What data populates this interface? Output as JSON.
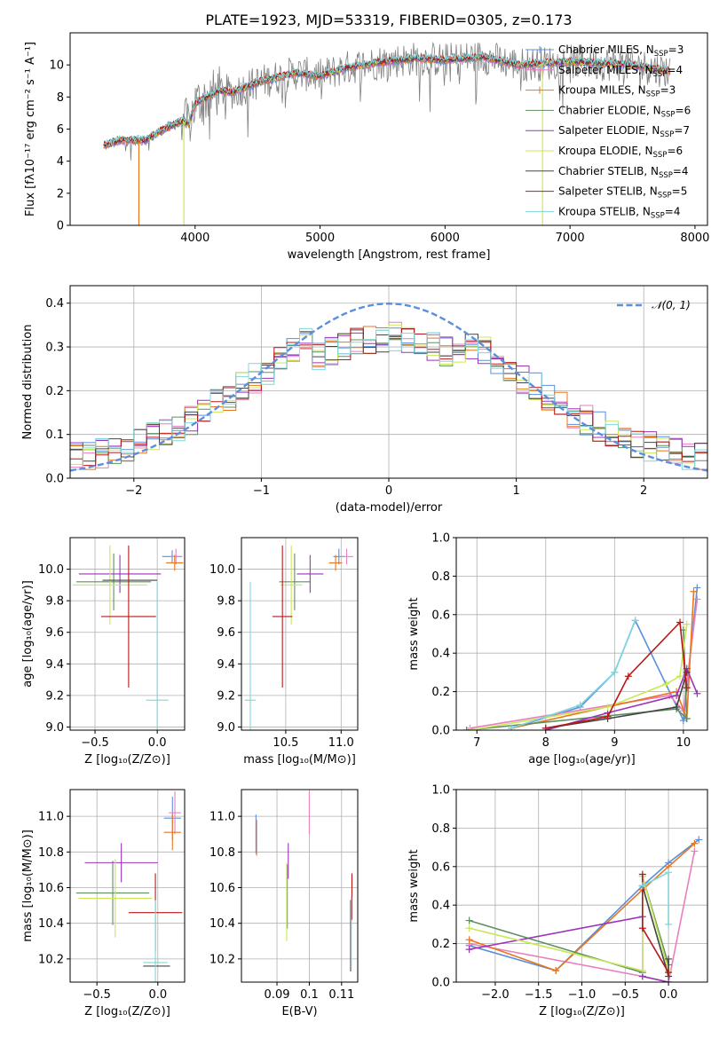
{
  "figure_title": "PLATE=1923, MJD=53319, FIBERID=0305, z=0.173",
  "colors": {
    "Chabrier MILES": "#5b8fdc",
    "Salpeter MILES": "#e97fbd",
    "Kroupa MILES": "#e8761d",
    "Chabrier ELODIE": "#5f8f5f",
    "Salpeter ELODIE": "#9b34b8",
    "Kroupa ELODIE": "#c8e85a",
    "Chabrier STELIB": "#444444",
    "Salpeter STELIB": "#b81818",
    "Kroupa STELIB": "#7fd6dc",
    "data": "#808080",
    "normal": "#5b8fdc"
  },
  "chart_data": [
    {
      "id": "spectrum",
      "type": "line",
      "xlabel": "wavelength [Angstrom, rest frame]",
      "ylabel": "Flux [fλ10⁻¹⁷ erg cm⁻² s⁻¹ A⁻¹]",
      "xlim": [
        3000,
        8100
      ],
      "ylim": [
        0,
        12
      ],
      "xticks": [
        4000,
        5000,
        6000,
        7000,
        8000
      ],
      "yticks": [
        0,
        2,
        4,
        6,
        8,
        10
      ],
      "legend_position": "top-right",
      "legend": [
        {
          "model": "Chabrier MILES",
          "label": "Chabrier MILES, N",
          "sub": "SSP",
          "suffix": "=3"
        },
        {
          "model": "Salpeter MILES",
          "label": "Salpeter MILES, N",
          "sub": "SSP",
          "suffix": "=4"
        },
        {
          "model": "Kroupa MILES",
          "label": "Kroupa MILES, N",
          "sub": "SSP",
          "suffix": "=3"
        },
        {
          "model": "Chabrier ELODIE",
          "label": "Chabrier ELODIE, N",
          "sub": "SSP",
          "suffix": "=6"
        },
        {
          "model": "Salpeter ELODIE",
          "label": "Salpeter ELODIE, N",
          "sub": "SSP",
          "suffix": "=7"
        },
        {
          "model": "Kroupa ELODIE",
          "label": "Kroupa ELODIE, N",
          "sub": "SSP",
          "suffix": "=6"
        },
        {
          "model": "Chabrier STELIB",
          "label": "Chabrier STELIB, N",
          "sub": "SSP",
          "suffix": "=4"
        },
        {
          "model": "Salpeter STELIB",
          "label": "Salpeter STELIB, N",
          "sub": "SSP",
          "suffix": "=5"
        },
        {
          "model": "Kroupa STELIB",
          "label": "Kroupa STELIB, N",
          "sub": "SSP",
          "suffix": "=4"
        }
      ],
      "continuum": [
        [
          3270,
          5.0
        ],
        [
          3400,
          5.3
        ],
        [
          3600,
          5.3
        ],
        [
          3750,
          6.0
        ],
        [
          3900,
          6.5
        ],
        [
          3950,
          6.3
        ],
        [
          4000,
          7.6
        ],
        [
          4200,
          8.4
        ],
        [
          4300,
          8.3
        ],
        [
          4500,
          8.9
        ],
        [
          4800,
          9.5
        ],
        [
          5000,
          9.3
        ],
        [
          5200,
          9.8
        ],
        [
          5500,
          10.2
        ],
        [
          5800,
          10.4
        ],
        [
          6000,
          10.3
        ],
        [
          6300,
          10.5
        ],
        [
          6600,
          10.0
        ],
        [
          7000,
          10.2
        ],
        [
          7500,
          10.0
        ],
        [
          7800,
          9.6
        ]
      ],
      "dropouts": [
        {
          "model": "Kroupa MILES",
          "x": 3550
        },
        {
          "model": "Kroupa ELODIE",
          "x": 3910
        },
        {
          "model": "Kroupa ELODIE",
          "x": 6780
        }
      ]
    },
    {
      "id": "residuals",
      "type": "step",
      "xlabel": "(data-model)/error",
      "ylabel": "Normed distribution",
      "xlim": [
        -2.5,
        2.5
      ],
      "ylim": [
        0,
        0.44
      ],
      "xticks": [
        -2,
        -1,
        0,
        1,
        2
      ],
      "yticks": [
        0.0,
        0.1,
        0.2,
        0.3,
        0.4
      ],
      "bin_width": 0.1,
      "legend_position": "top-right",
      "legend": [
        {
          "label": "𝒩(0, 1)"
        }
      ],
      "curve": {
        "mean": 0,
        "sigma": 1
      }
    },
    {
      "id": "age_vs_Z",
      "type": "errorbar",
      "xlabel": "Z [log₁₀(Z/Z⊙)]",
      "ylabel": "age  [log₁₀(age/yr)]",
      "xlim": [
        -0.7,
        0.22
      ],
      "ylim": [
        8.98,
        10.2
      ],
      "xticks": [
        -0.5,
        0.0
      ],
      "yticks": [
        9.0,
        9.2,
        9.4,
        9.6,
        9.8,
        10.0
      ],
      "points": [
        {
          "model": "Chabrier MILES",
          "x": 0.12,
          "y": 10.08,
          "xerr": 0.08,
          "yerr": 0.04
        },
        {
          "model": "Salpeter MILES",
          "x": 0.15,
          "y": 10.08,
          "xerr": 0.05,
          "yerr": 0.05
        },
        {
          "model": "Kroupa MILES",
          "x": 0.14,
          "y": 10.04,
          "xerr": 0.07,
          "yerr": 0.05
        },
        {
          "model": "Chabrier ELODIE",
          "x": -0.35,
          "y": 9.92,
          "xerr": 0.3,
          "yerr": 0.18
        },
        {
          "model": "Salpeter ELODIE",
          "x": -0.3,
          "y": 9.97,
          "xerr": 0.33,
          "yerr": 0.12
        },
        {
          "model": "Kroupa ELODIE",
          "x": -0.38,
          "y": 9.9,
          "xerr": 0.3,
          "yerr": 0.25
        },
        {
          "model": "Chabrier STELIB",
          "x": -0.22,
          "y": 9.93,
          "xerr": 0.22,
          "yerr": 0.0
        },
        {
          "model": "Salpeter STELIB",
          "x": -0.23,
          "y": 9.7,
          "xerr": 0.22,
          "yerr": 0.45
        },
        {
          "model": "Kroupa STELIB",
          "x": 0.0,
          "y": 9.17,
          "xerr": 0.09,
          "yerr": 0.75
        }
      ]
    },
    {
      "id": "age_vs_mass",
      "type": "errorbar",
      "xlabel": "mass [log₁₀(M/M⊙)]",
      "ylabel": "",
      "xlim": [
        10.1,
        11.15
      ],
      "ylim": [
        8.98,
        10.2
      ],
      "xticks": [
        10.5,
        11.0
      ],
      "yticks": [
        9.0,
        9.2,
        9.4,
        9.6,
        9.8,
        10.0
      ],
      "points": [
        {
          "model": "Chabrier MILES",
          "x": 10.98,
          "y": 10.08,
          "xerr": 0.05,
          "yerr": 0.05
        },
        {
          "model": "Salpeter MILES",
          "x": 11.05,
          "y": 10.08,
          "xerr": 0.06,
          "yerr": 0.05
        },
        {
          "model": "Kroupa MILES",
          "x": 10.95,
          "y": 10.04,
          "xerr": 0.06,
          "yerr": 0.05
        },
        {
          "model": "Chabrier ELODIE",
          "x": 10.58,
          "y": 9.92,
          "xerr": 0.14,
          "yerr": 0.18
        },
        {
          "model": "Salpeter ELODIE",
          "x": 10.72,
          "y": 9.97,
          "xerr": 0.12,
          "yerr": 0.12
        },
        {
          "model": "Kroupa ELODIE",
          "x": 10.55,
          "y": 9.9,
          "xerr": 0.1,
          "yerr": 0.25
        },
        {
          "model": "Chabrier STELIB",
          "x": 10.38,
          "y": 9.93,
          "xerr": 0.0,
          "yerr": 0.0
        },
        {
          "model": "Salpeter STELIB",
          "x": 10.47,
          "y": 9.7,
          "xerr": 0.09,
          "yerr": 0.45
        },
        {
          "model": "Kroupa STELIB",
          "x": 10.18,
          "y": 9.17,
          "xerr": 0.05,
          "yerr": 0.75
        }
      ]
    },
    {
      "id": "massweight_vs_age",
      "type": "line",
      "xlabel": "age  [log₁₀(age/yr)]",
      "ylabel": "mass weight",
      "xlim": [
        6.7,
        10.35
      ],
      "ylim": [
        0,
        1
      ],
      "xticks": [
        7,
        8,
        9,
        10
      ],
      "yticks": [
        0.0,
        0.2,
        0.4,
        0.6,
        0.8,
        1.0
      ],
      "series": [
        {
          "model": "Chabrier MILES",
          "x": [
            7.5,
            8.5,
            9.0,
            9.3,
            10.0,
            10.2
          ],
          "y": [
            0.01,
            0.12,
            0.3,
            0.57,
            0.05,
            0.74
          ]
        },
        {
          "model": "Salpeter MILES",
          "x": [
            6.9,
            9.8,
            10.0,
            10.2
          ],
          "y": [
            0.01,
            0.18,
            0.1,
            0.68
          ]
        },
        {
          "model": "Kroupa MILES",
          "x": [
            7.5,
            9.9,
            10.05,
            10.15
          ],
          "y": [
            0.01,
            0.2,
            0.06,
            0.72
          ]
        },
        {
          "model": "Chabrier ELODIE",
          "x": [
            6.85,
            9.9,
            10.05,
            10.0
          ],
          "y": [
            0.0,
            0.11,
            0.06,
            0.52
          ]
        },
        {
          "model": "Salpeter ELODIE",
          "x": [
            8.0,
            8.9,
            9.9,
            10.05,
            10.2
          ],
          "y": [
            0.0,
            0.09,
            0.18,
            0.32,
            0.19
          ]
        },
        {
          "model": "Kroupa ELODIE",
          "x": [
            6.9,
            8.9,
            9.75,
            9.95,
            10.05
          ],
          "y": [
            0.0,
            0.12,
            0.24,
            0.28,
            0.55
          ]
        },
        {
          "model": "Chabrier STELIB",
          "x": [
            8.0,
            8.9,
            9.9,
            10.05
          ],
          "y": [
            0.01,
            0.06,
            0.12,
            0.3
          ]
        },
        {
          "model": "Salpeter STELIB",
          "x": [
            8.0,
            8.9,
            9.2,
            9.95,
            10.05
          ],
          "y": [
            0.01,
            0.07,
            0.28,
            0.56,
            0.22
          ]
        },
        {
          "model": "Kroupa STELIB",
          "x": [
            7.5,
            8.5,
            9.0,
            9.3
          ],
          "y": [
            0.01,
            0.13,
            0.3,
            0.57
          ]
        }
      ]
    },
    {
      "id": "mass_vs_Z",
      "type": "errorbar",
      "xlabel": "Z [log₁₀(Z/Z⊙)]",
      "ylabel": "mass [log₁₀(M/M⊙)]",
      "xlim": [
        -0.72,
        0.22
      ],
      "ylim": [
        10.07,
        11.15
      ],
      "xticks": [
        -0.5,
        0.0
      ],
      "yticks": [
        10.2,
        10.4,
        10.6,
        10.8,
        11.0
      ],
      "points": [
        {
          "model": "Chabrier MILES",
          "x": 0.12,
          "y": 10.99,
          "xerr": 0.07,
          "yerr": 0.12
        },
        {
          "model": "Salpeter MILES",
          "x": 0.14,
          "y": 11.02,
          "xerr": 0.05,
          "yerr": 0.12
        },
        {
          "model": "Kroupa MILES",
          "x": 0.12,
          "y": 10.91,
          "xerr": 0.07,
          "yerr": 0.1
        },
        {
          "model": "Chabrier ELODIE",
          "x": -0.37,
          "y": 10.57,
          "xerr": 0.3,
          "yerr": 0.18
        },
        {
          "model": "Salpeter ELODIE",
          "x": -0.3,
          "y": 10.74,
          "xerr": 0.3,
          "yerr": 0.11
        },
        {
          "model": "Kroupa ELODIE",
          "x": -0.35,
          "y": 10.54,
          "xerr": 0.3,
          "yerr": 0.22
        },
        {
          "model": "Chabrier STELIB",
          "x": -0.01,
          "y": 10.16,
          "xerr": 0.11,
          "yerr": 0.0
        },
        {
          "model": "Salpeter STELIB",
          "x": -0.02,
          "y": 10.46,
          "xerr": 0.22,
          "yerr": 0.22
        },
        {
          "model": "Kroupa STELIB",
          "x": -0.02,
          "y": 10.18,
          "xerr": 0.1,
          "yerr": 0.35
        }
      ]
    },
    {
      "id": "mass_vs_EBV",
      "type": "errorbar",
      "xlabel": "E(B-V)",
      "ylabel": "",
      "xlim": [
        0.079,
        0.115
      ],
      "ylim": [
        10.07,
        11.15
      ],
      "xticks": [
        0.09,
        0.1,
        0.11
      ],
      "yticks": [
        10.2,
        10.4,
        10.6,
        10.8,
        11.0
      ],
      "points": [
        {
          "model": "Chabrier MILES",
          "x": 0.0835,
          "y": 10.9,
          "xerr": 0.0,
          "yerr": 0.11
        },
        {
          "model": "Salpeter MILES",
          "x": 0.1,
          "y": 11.02,
          "xerr": 0.0,
          "yerr": 0.12
        },
        {
          "model": "Kroupa MILES",
          "x": 0.0837,
          "y": 10.88,
          "xerr": 0.0,
          "yerr": 0.1
        },
        {
          "model": "Chabrier ELODIE",
          "x": 0.0932,
          "y": 10.55,
          "xerr": 0.0,
          "yerr": 0.18
        },
        {
          "model": "Salpeter ELODIE",
          "x": 0.0935,
          "y": 10.75,
          "xerr": 0.0,
          "yerr": 0.1
        },
        {
          "model": "Kroupa ELODIE",
          "x": 0.093,
          "y": 10.52,
          "xerr": 0.0,
          "yerr": 0.22
        },
        {
          "model": "Chabrier STELIB",
          "x": 0.1128,
          "y": 10.33,
          "xerr": 0.0,
          "yerr": 0.2
        },
        {
          "model": "Salpeter STELIB",
          "x": 0.1132,
          "y": 10.55,
          "xerr": 0.0,
          "yerr": 0.13
        },
        {
          "model": "Kroupa STELIB",
          "x": 0.113,
          "y": 10.35,
          "xerr": 0.0,
          "yerr": 0.2
        }
      ]
    },
    {
      "id": "massweight_vs_Z",
      "type": "line",
      "xlabel": "Z [log₁₀(Z/Z⊙)]",
      "ylabel": "mass weight",
      "xlim": [
        -2.45,
        0.45
      ],
      "ylim": [
        0,
        1
      ],
      "xticks": [
        -2.0,
        -1.5,
        -1.0,
        -0.5,
        0.0
      ],
      "yticks": [
        0.0,
        0.2,
        0.4,
        0.6,
        0.8,
        1.0
      ],
      "series": [
        {
          "model": "Chabrier MILES",
          "x": [
            -2.3,
            -1.3,
            -0.3,
            0.0,
            0.35
          ],
          "y": [
            0.19,
            0.06,
            0.5,
            0.62,
            0.74
          ]
        },
        {
          "model": "Salpeter MILES",
          "x": [
            -2.3,
            -0.3,
            0.0,
            0.3
          ],
          "y": [
            0.2,
            0.03,
            0.0,
            0.68
          ]
        },
        {
          "model": "Kroupa MILES",
          "x": [
            -2.3,
            -1.3,
            -0.3,
            0.0,
            0.3
          ],
          "y": [
            0.22,
            0.06,
            0.48,
            0.6,
            0.72
          ]
        },
        {
          "model": "Chabrier ELODIE",
          "x": [
            -2.3,
            -0.3,
            -0.3,
            0.0
          ],
          "y": [
            0.32,
            0.05,
            0.55,
            0.09
          ]
        },
        {
          "model": "Salpeter ELODIE",
          "x": [
            -2.3,
            -0.3,
            -0.3,
            0.0
          ],
          "y": [
            0.17,
            0.34,
            0.03,
            0.0
          ]
        },
        {
          "model": "Kroupa ELODIE",
          "x": [
            -2.3,
            -0.3,
            -0.3,
            0.0
          ],
          "y": [
            0.28,
            0.06,
            0.55,
            0.06
          ]
        },
        {
          "model": "Chabrier STELIB",
          "x": [
            -0.3,
            0.0,
            0.0
          ],
          "y": [
            0.5,
            0.03,
            0.12
          ]
        },
        {
          "model": "Salpeter STELIB",
          "x": [
            -0.3,
            -0.3,
            0.0
          ],
          "y": [
            0.56,
            0.28,
            0.05
          ]
        },
        {
          "model": "Kroupa STELIB",
          "x": [
            -0.3,
            0.0,
            0.0
          ],
          "y": [
            0.5,
            0.57,
            0.3
          ]
        }
      ]
    }
  ]
}
